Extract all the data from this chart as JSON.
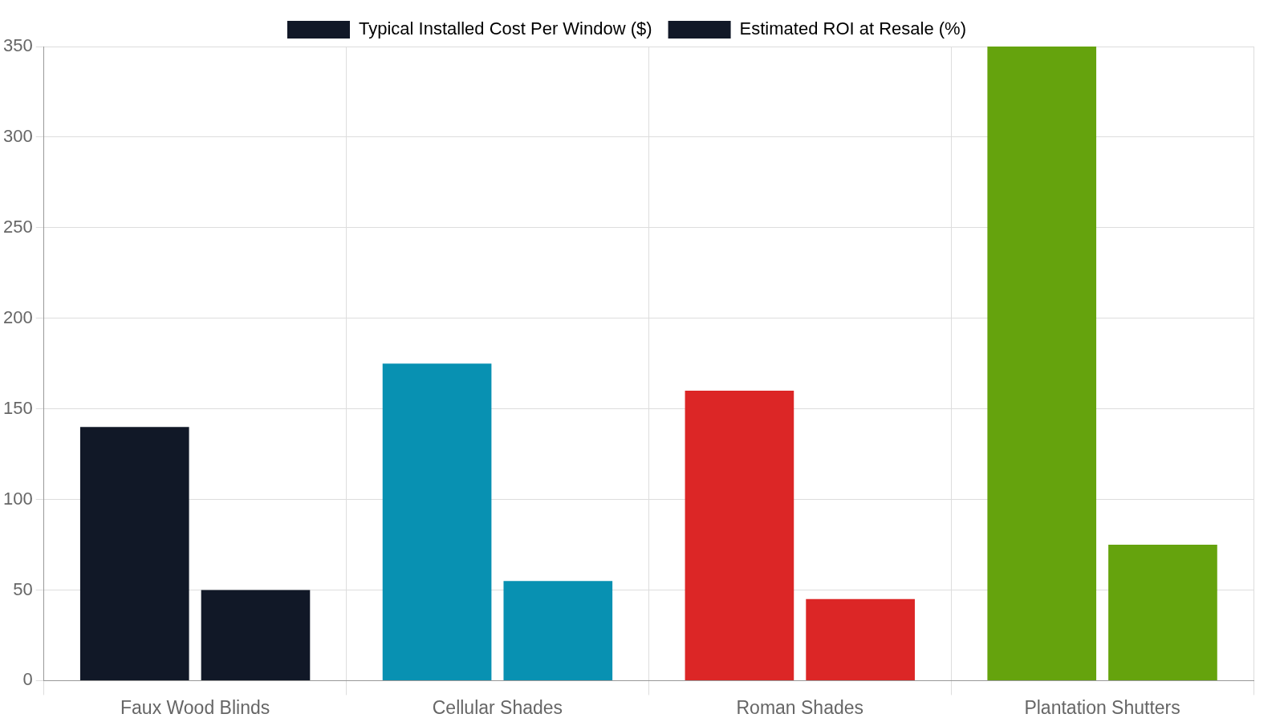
{
  "chart_data": {
    "type": "bar",
    "categories": [
      "Faux Wood Blinds",
      "Cellular Shades",
      "Roman Shades",
      "Plantation Shutters"
    ],
    "series": [
      {
        "name": "Typical Installed Cost Per Window ($)",
        "color": "#111827",
        "colors": [
          "#111827",
          "#0891b2",
          "#dc2626",
          "#65a30d"
        ],
        "values": [
          140,
          175,
          160,
          350
        ]
      },
      {
        "name": "Estimated ROI at Resale (%)",
        "color": "#111827",
        "colors": [
          "#111827",
          "#0891b2",
          "#dc2626",
          "#65a30d"
        ],
        "values": [
          50,
          55,
          45,
          75
        ]
      }
    ],
    "ylim": [
      0,
      350
    ],
    "yticks": [
      0,
      50,
      100,
      150,
      200,
      250,
      300,
      350
    ],
    "grid": true,
    "legend": "top"
  }
}
